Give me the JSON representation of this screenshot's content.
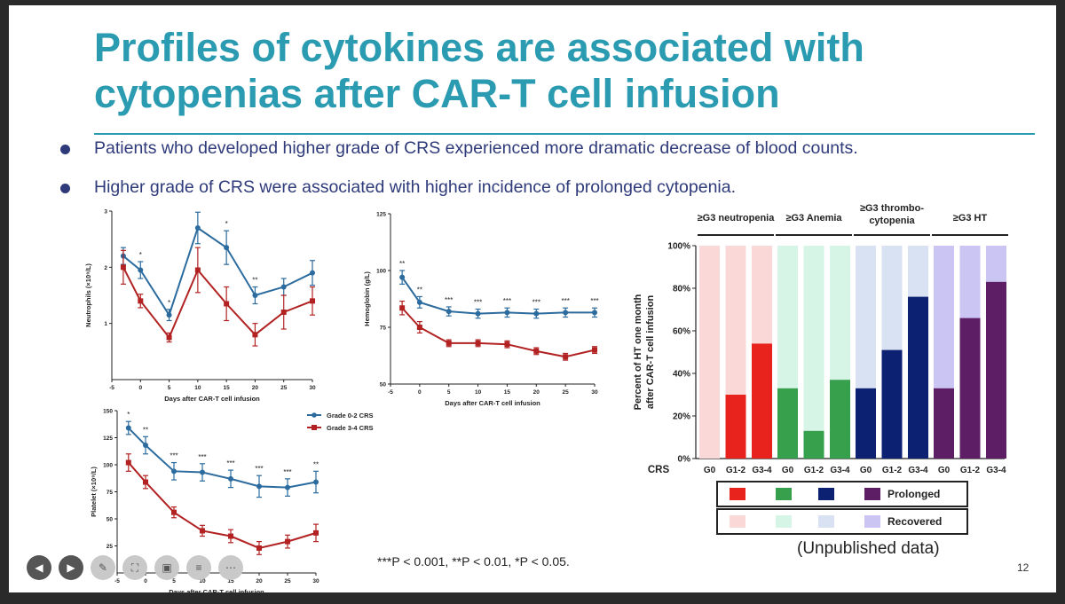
{
  "slide": {
    "title_line1": "Profiles of cytokines are associated with",
    "title_line2": "cytopenias after CAR-T cell infusion",
    "bullets": [
      "Patients who developed higher grade of CRS experienced more dramatic decrease of blood counts.",
      "Higher grade of CRS were associated with higher incidence of prolonged cytopenia."
    ],
    "pvalue_note": "***P < 0.001, **P < 0.01, *P < 0.05.",
    "unpublished_note": "(Unpublished data)",
    "page_number": "12"
  },
  "colors": {
    "title": "#2a9bb0",
    "grade02": "#2b6b9e",
    "grade34": "#b22222"
  },
  "toolbar": {
    "icons": [
      "arrow-left-icon",
      "arrow-right-icon",
      "pen-icon",
      "screen-capture-icon",
      "camera-icon",
      "notes-icon",
      "more-icon"
    ]
  },
  "chart_data": [
    {
      "type": "line",
      "xlabel": "Days after CAR-T cell infusion",
      "ylabel": "Neutrophils (×10⁹/L)",
      "x": [
        -3,
        0,
        5,
        10,
        15,
        20,
        25,
        30
      ],
      "xticks": [
        "-5",
        "0",
        "5",
        "10",
        "15",
        "20",
        "25",
        "30"
      ],
      "xlim": [
        -5,
        30
      ],
      "ylim": [
        0,
        3
      ],
      "yticks": [
        "1",
        "2",
        "3"
      ],
      "series": [
        {
          "name": "Grade 0-2 CRS",
          "values": [
            2.2,
            1.95,
            1.15,
            2.7,
            2.35,
            1.5,
            1.65,
            1.9
          ],
          "err": [
            0.15,
            0.15,
            0.1,
            0.28,
            0.3,
            0.15,
            0.15,
            0.22
          ]
        },
        {
          "name": "Grade 3-4 CRS",
          "values": [
            2.0,
            1.4,
            0.75,
            1.95,
            1.35,
            0.8,
            1.2,
            1.4
          ],
          "err": [
            0.3,
            0.12,
            0.08,
            0.4,
            0.3,
            0.2,
            0.3,
            0.25
          ]
        }
      ],
      "significance": [
        "",
        "*",
        "*",
        "",
        "*",
        "**",
        "",
        ""
      ]
    },
    {
      "type": "line",
      "xlabel": "Days after CAR-T cell infusion",
      "ylabel": "Hemoglobin (g/L)",
      "x": [
        -3,
        0,
        5,
        10,
        15,
        20,
        25,
        30
      ],
      "xticks": [
        "-5",
        "0",
        "5",
        "10",
        "15",
        "20",
        "25",
        "30"
      ],
      "xlim": [
        -5,
        30
      ],
      "ylim": [
        50,
        125
      ],
      "yticks": [
        "50",
        "75",
        "100",
        "125"
      ],
      "series": [
        {
          "name": "Grade 0-2 CRS",
          "values": [
            97,
            86,
            82,
            81,
            81.5,
            81,
            81.5,
            81.5
          ],
          "err": [
            3,
            2.5,
            2,
            2,
            2,
            2,
            2,
            2
          ]
        },
        {
          "name": "Grade 3-4 CRS",
          "values": [
            83.5,
            75,
            68,
            68,
            67.5,
            64.5,
            62,
            65
          ],
          "err": [
            3,
            2.5,
            1.5,
            1.5,
            1.5,
            1.5,
            1.5,
            1.5
          ]
        }
      ],
      "significance": [
        "**",
        "**",
        "***",
        "***",
        "***",
        "***",
        "***",
        "***"
      ]
    },
    {
      "type": "line",
      "xlabel": "Days after CAR-T cell infusion",
      "ylabel": "Platelet (×10⁹/L)",
      "x": [
        -3,
        0,
        5,
        10,
        15,
        20,
        25,
        30
      ],
      "xticks": [
        "-5",
        "0",
        "5",
        "10",
        "15",
        "20",
        "25",
        "30"
      ],
      "xlim": [
        -5,
        30
      ],
      "ylim": [
        0,
        150
      ],
      "yticks": [
        "25",
        "50",
        "75",
        "100",
        "125",
        "150"
      ],
      "legend": [
        "Grade 0-2 CRS",
        "Grade 3-4 CRS"
      ],
      "series": [
        {
          "name": "Grade 0-2 CRS",
          "values": [
            134,
            118,
            94,
            93,
            87,
            80,
            79,
            84
          ],
          "err": [
            6,
            8,
            8,
            8,
            8,
            10,
            8,
            10
          ]
        },
        {
          "name": "Grade 3-4 CRS",
          "values": [
            102,
            84,
            56,
            39,
            34,
            23,
            29,
            37
          ],
          "err": [
            8,
            6,
            5,
            5,
            6,
            6,
            6,
            8
          ]
        }
      ],
      "significance": [
        "*",
        "**",
        "***",
        "***",
        "***",
        "***",
        "***",
        "**"
      ]
    },
    {
      "type": "bar",
      "stacked": true,
      "ylabel_line1": "Percent of HT one month",
      "ylabel_line2": "after CAR-T cell infusion",
      "xaxis_label": "CRS",
      "ylim": [
        0,
        100
      ],
      "yticks": [
        "0%",
        "20%",
        "40%",
        "60%",
        "80%",
        "100%"
      ],
      "groups": [
        {
          "title": "≥G3 neutropenia",
          "prolonged_color": "#e8231d",
          "recovered_color": "#fad8d8",
          "categories": [
            "G0",
            "G1-2",
            "G3-4"
          ],
          "prolonged": [
            0,
            30,
            54
          ]
        },
        {
          "title": "≥G3 Anemia",
          "prolonged_color": "#37a04c",
          "recovered_color": "#d6f5e7",
          "categories": [
            "G0",
            "G1-2",
            "G3-4"
          ],
          "prolonged": [
            33,
            13,
            37
          ]
        },
        {
          "title_line1": "≥G3 thrombo-",
          "title_line2": "cytopenia",
          "prolonged_color": "#0d2173",
          "recovered_color": "#d9e2f3",
          "categories": [
            "G0",
            "G1-2",
            "G3-4"
          ],
          "prolonged": [
            33,
            51,
            76
          ]
        },
        {
          "title": "≥G3 HT",
          "prolonged_color": "#5e1e66",
          "recovered_color": "#cbc5f3",
          "categories": [
            "G0",
            "G1-2",
            "G3-4"
          ],
          "prolonged": [
            33,
            66,
            83
          ]
        }
      ],
      "legend": [
        "Prolonged",
        "Recovered"
      ]
    }
  ]
}
